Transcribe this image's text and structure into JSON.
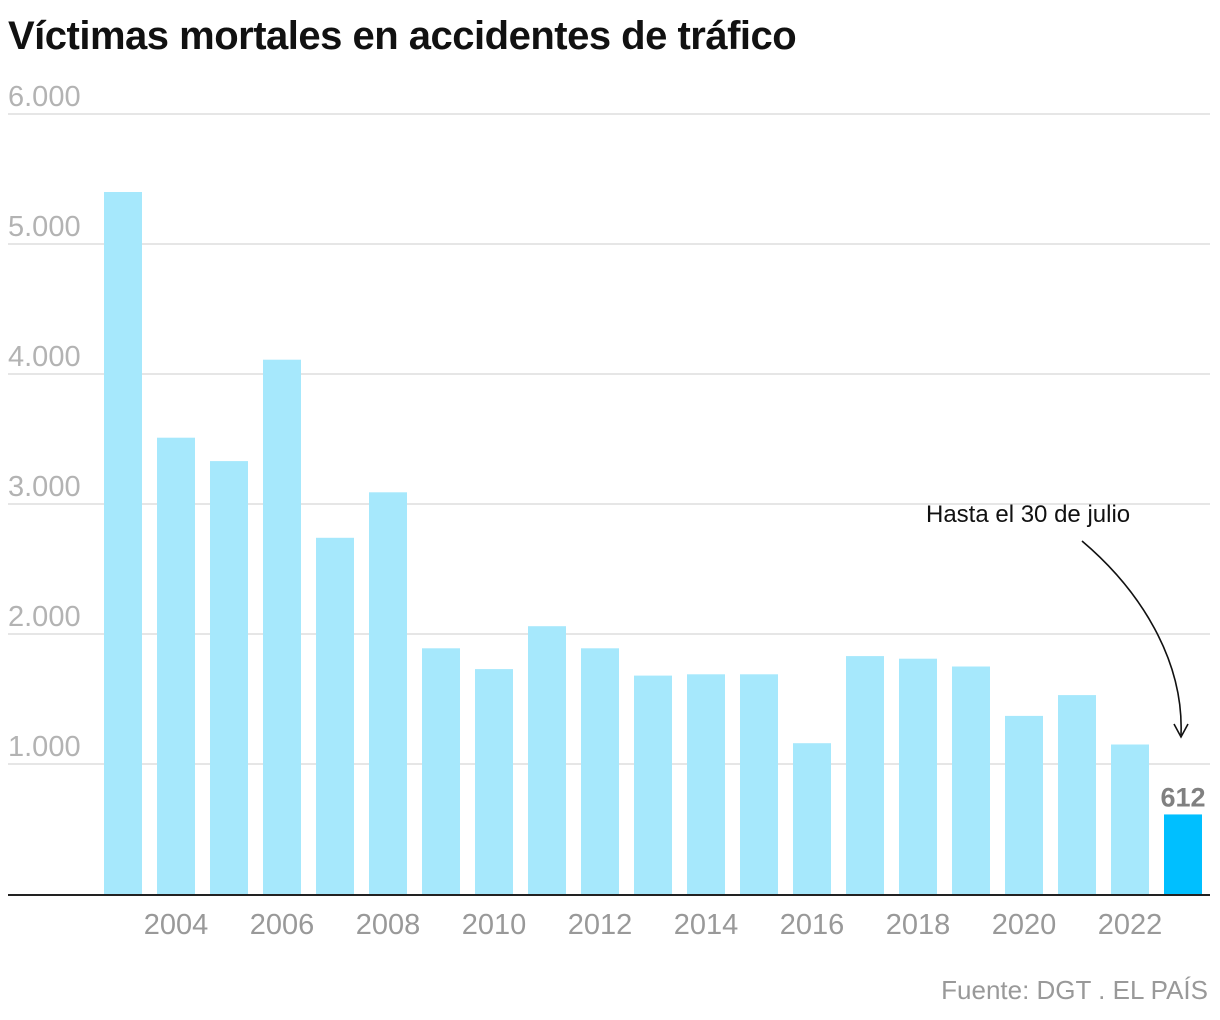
{
  "chart_data": {
    "type": "bar",
    "title": "Víctimas mortales en accidentes de tráfico",
    "xlabel": "",
    "ylabel": "",
    "categories": [
      "2003",
      "2004",
      "2005",
      "2006",
      "2007",
      "2008",
      "2009",
      "2010",
      "2011",
      "2012",
      "2013",
      "2014",
      "2015",
      "2016",
      "2017",
      "2018",
      "2019",
      "2020",
      "2021",
      "2022",
      "2023"
    ],
    "values": [
      5400,
      3510,
      3330,
      4110,
      2740,
      3090,
      1890,
      1730,
      2060,
      1890,
      1680,
      1690,
      1690,
      1160,
      1830,
      1810,
      1750,
      1370,
      1530,
      1150,
      612
    ],
    "ylim": [
      0,
      6000
    ],
    "yticks": [
      1000,
      2000,
      3000,
      4000,
      5000,
      6000
    ],
    "ytick_labels": [
      "1.000",
      "2.000",
      "3.000",
      "4.000",
      "5.000",
      "6.000"
    ],
    "xtick_labels": [
      "2004",
      "2006",
      "2008",
      "2010",
      "2012",
      "2014",
      "2016",
      "2018",
      "2020",
      "2022"
    ],
    "highlight": {
      "category": "2023",
      "label": "612"
    },
    "annotation": "Hasta el 30 de julio",
    "grid": true,
    "colors": {
      "bar": "#a6e8fc",
      "highlight": "#00bfff",
      "grid": "#dddddd",
      "axis": "#222222"
    }
  },
  "source": "Fuente: DGT . EL PAÍS"
}
